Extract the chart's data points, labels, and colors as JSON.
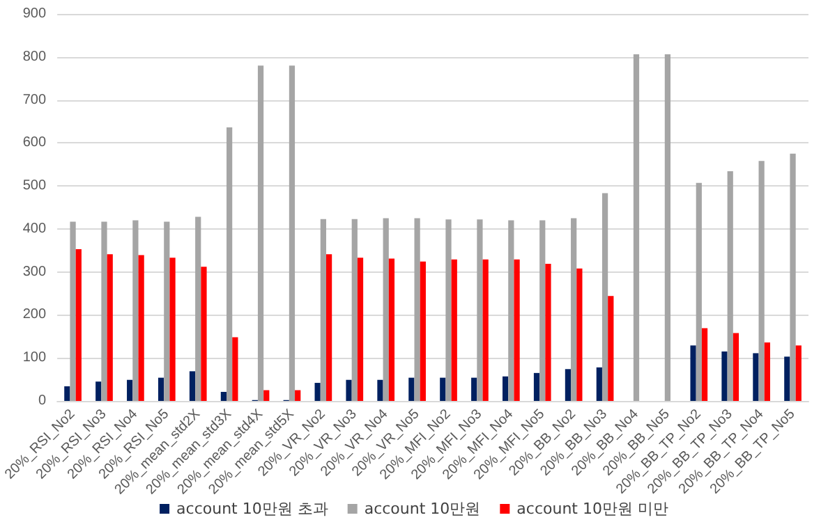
{
  "chart_data": {
    "type": "bar",
    "categories": [
      "20%_RSI_No2",
      "20%_RSI_No3",
      "20%_RSI_No4",
      "20%_RSI_No5",
      "20%_mean_std2X",
      "20%_mean_std3X",
      "20%_mean_std4X",
      "20%_mean_std5X",
      "20%_VR_No2",
      "20%_VR_No3",
      "20%_VR_No4",
      "20%_VR_No5",
      "20%_MFI_No2",
      "20%_MFI_No3",
      "20%_MFI_No4",
      "20%_MFI_No5",
      "20%_BB_No2",
      "20%_BB_No3",
      "20%_BB_No4",
      "20%_BB_No5",
      "20%_BB_TP_No2",
      "20%_BB_TP_No3",
      "20%_BB_TP_No4",
      "20%_BB_TP_No5"
    ],
    "series": [
      {
        "name": "account 10만원 초과",
        "color": "#002060",
        "values": [
          34,
          45,
          49,
          54,
          69,
          21,
          2,
          2,
          42,
          49,
          49,
          54,
          54,
          54,
          57,
          65,
          74,
          78,
          0,
          0,
          129,
          115,
          111,
          103
        ]
      },
      {
        "name": "account 10만원",
        "color": "#a5a5a5",
        "values": [
          417,
          417,
          420,
          417,
          428,
          636,
          780,
          780,
          423,
          423,
          425,
          425,
          422,
          422,
          420,
          420,
          425,
          483,
          806,
          806,
          507,
          534,
          558,
          575
        ]
      },
      {
        "name": "account 10만원 미만",
        "color": "#ff0000",
        "values": [
          353,
          341,
          339,
          333,
          312,
          148,
          25,
          25,
          341,
          333,
          331,
          324,
          329,
          329,
          329,
          319,
          308,
          244,
          0,
          0,
          169,
          158,
          136,
          129
        ]
      }
    ],
    "ylim": [
      0,
      900
    ],
    "yticks": [
      0,
      100,
      200,
      300,
      400,
      500,
      600,
      700,
      800,
      900
    ],
    "grid": "y",
    "legend": "bottom"
  }
}
